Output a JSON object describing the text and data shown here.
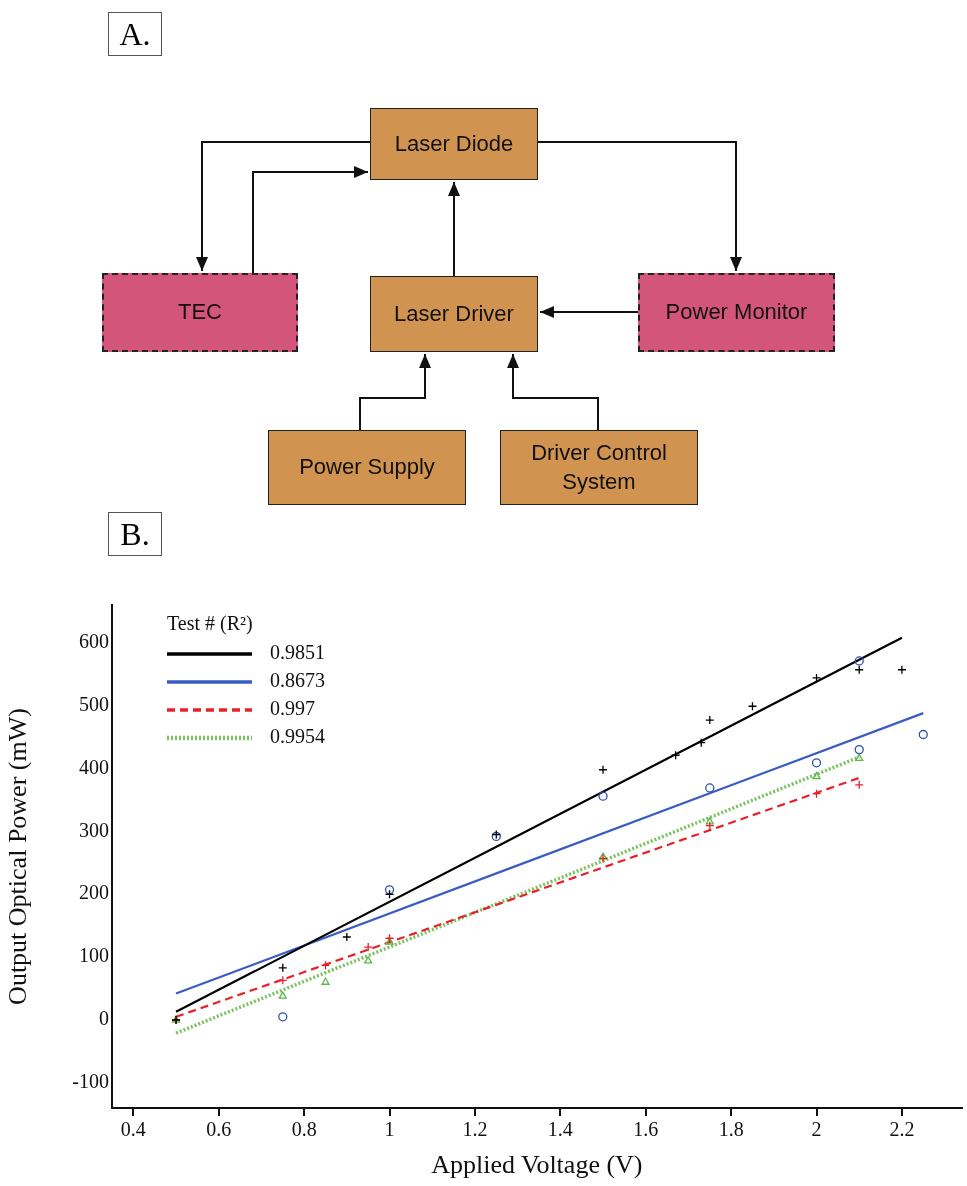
{
  "chart_data": [
    {
      "type": "other",
      "title": "A.",
      "annotations": [
        "Laser Diode",
        "TEC",
        "Laser Driver",
        "Power Monitor",
        "Power Supply",
        "Driver Control System"
      ]
    },
    {
      "type": "scatter",
      "title": "B.",
      "xlabel": "Applied Voltage (V)",
      "ylabel": "Output Optical Power (mW)",
      "legend_title": "Test # (R²)",
      "legend": "top left",
      "grid": false,
      "xlim": [
        0.35,
        2.34
      ],
      "xticks": [
        0.4,
        0.6,
        0.8,
        1,
        1.2,
        1.4,
        1.6,
        1.8,
        2,
        2.2
      ],
      "ylim": [
        -140,
        660
      ],
      "yticks": [
        -100,
        0,
        100,
        200,
        300,
        400,
        500,
        600
      ],
      "series": [
        {
          "type": "scatter",
          "color": "#000000",
          "marker": "cross",
          "x": [
            0.5,
            0.75,
            0.9,
            1.0,
            1.25,
            1.5,
            1.67,
            1.73,
            1.75,
            1.85,
            2.0,
            2.1,
            2.2
          ],
          "values": [
            0,
            83,
            132,
            200,
            295,
            398,
            421,
            441,
            477,
            499,
            544,
            557,
            557
          ]
        },
        {
          "type": "scatter",
          "color": "#2f4fb0",
          "marker": "circle",
          "x": [
            0.75,
            1.0,
            1.25,
            1.5,
            1.75,
            2.0,
            2.1,
            2.1,
            2.25
          ],
          "values": [
            5,
            207,
            292,
            356,
            369,
            409,
            430,
            571,
            454
          ]
        },
        {
          "type": "scatter",
          "color": "#e8202a",
          "marker": "cross",
          "x": [
            0.5,
            0.75,
            0.85,
            0.95,
            1.0,
            1.5,
            1.75,
            2.0,
            2.1
          ],
          "values": [
            0,
            63,
            87,
            116,
            130,
            257,
            309,
            360,
            374
          ]
        },
        {
          "type": "scatter",
          "color": "#5cb84a",
          "marker": "triangle",
          "x": [
            0.5,
            0.75,
            0.85,
            0.95,
            1.0,
            1.5,
            1.75,
            2.0,
            2.1
          ],
          "values": [
            0,
            38,
            60,
            94,
            124,
            259,
            315,
            387,
            416
          ]
        },
        {
          "type": "line",
          "name": "0.9851",
          "color": "#000000",
          "marker": "none",
          "line_style": "solid",
          "x": [
            0.5,
            2.2
          ],
          "values": [
            13,
            608
          ]
        },
        {
          "type": "line",
          "name": "0.8673",
          "color": "#3a5cc0",
          "marker": "none",
          "line_style": "solid",
          "x": [
            0.5,
            2.25
          ],
          "values": [
            42,
            488
          ]
        },
        {
          "type": "line",
          "name": "0.997",
          "color": "#e8202a",
          "marker": "none",
          "line_style": "dashed",
          "x": [
            0.5,
            2.1
          ],
          "values": [
            5,
            385
          ]
        },
        {
          "type": "line",
          "name": "0.9954",
          "color": "#7cc060",
          "marker": "none",
          "line_style": "dotted",
          "x": [
            0.5,
            2.1
          ],
          "values": [
            -21,
            418
          ]
        }
      ]
    }
  ]
}
